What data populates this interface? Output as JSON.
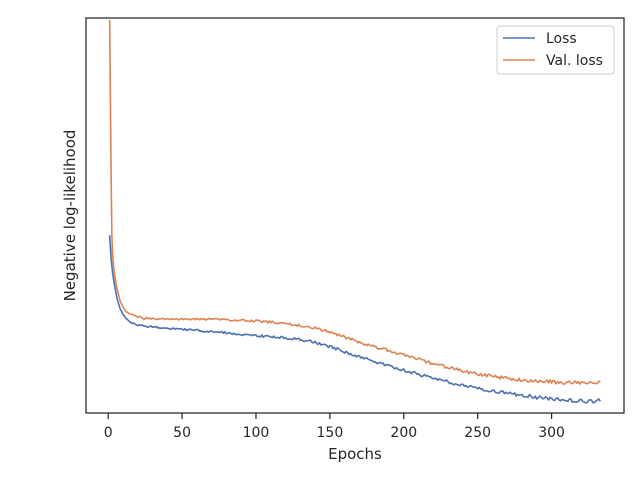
{
  "chart_data": {
    "type": "line",
    "title": "",
    "xlabel": "Epochs",
    "ylabel": "Negative log-likelihood",
    "xlim": [
      -15,
      349
    ],
    "ylim": [
      0.0,
      1.0
    ],
    "y_ticks_labeled": false,
    "x_ticks": [
      0,
      50,
      100,
      150,
      200,
      250,
      300
    ],
    "x_tick_labels": [
      "0",
      "50",
      "100",
      "150",
      "200",
      "250",
      "300"
    ],
    "grid": false,
    "legend": {
      "position": "top-right",
      "entries": [
        "Loss",
        "Val. loss"
      ]
    },
    "series": [
      {
        "name": "Loss",
        "color": "#4c72b0",
        "x": [
          1,
          2,
          3,
          4,
          5,
          6,
          8,
          10,
          12,
          15,
          20,
          25,
          30,
          40,
          50,
          60,
          70,
          80,
          90,
          100,
          110,
          120,
          130,
          140,
          150,
          160,
          170,
          180,
          190,
          200,
          210,
          220,
          230,
          240,
          250,
          260,
          270,
          280,
          290,
          300,
          310,
          320,
          325,
          330,
          333
        ],
        "y": [
          0.45,
          0.39,
          0.355,
          0.33,
          0.31,
          0.29,
          0.265,
          0.25,
          0.24,
          0.23,
          0.223,
          0.22,
          0.218,
          0.215,
          0.212,
          0.209,
          0.206,
          0.203,
          0.199,
          0.196,
          0.193,
          0.19,
          0.186,
          0.179,
          0.168,
          0.155,
          0.142,
          0.13,
          0.119,
          0.108,
          0.098,
          0.088,
          0.079,
          0.07,
          0.063,
          0.056,
          0.05,
          0.045,
          0.04,
          0.036,
          0.033,
          0.031,
          0.03,
          0.031,
          0.031
        ]
      },
      {
        "name": "Val. loss",
        "color": "#dd8452",
        "x": [
          1,
          1.5,
          2,
          2.5,
          3,
          4,
          5,
          6,
          8,
          10,
          12,
          15,
          20,
          25,
          30,
          40,
          50,
          60,
          70,
          80,
          90,
          100,
          110,
          120,
          130,
          140,
          150,
          160,
          170,
          180,
          190,
          200,
          210,
          220,
          230,
          240,
          250,
          260,
          270,
          280,
          290,
          300,
          310,
          320,
          325,
          330,
          333
        ],
        "y": [
          0.995,
          0.8,
          0.6,
          0.45,
          0.4,
          0.36,
          0.335,
          0.315,
          0.285,
          0.268,
          0.257,
          0.25,
          0.243,
          0.24,
          0.239,
          0.238,
          0.238,
          0.238,
          0.237,
          0.236,
          0.235,
          0.233,
          0.23,
          0.226,
          0.221,
          0.215,
          0.205,
          0.192,
          0.179,
          0.168,
          0.158,
          0.147,
          0.136,
          0.125,
          0.115,
          0.106,
          0.099,
          0.093,
          0.088,
          0.084,
          0.081,
          0.079,
          0.077,
          0.076,
          0.076,
          0.077,
          0.077
        ]
      }
    ]
  }
}
